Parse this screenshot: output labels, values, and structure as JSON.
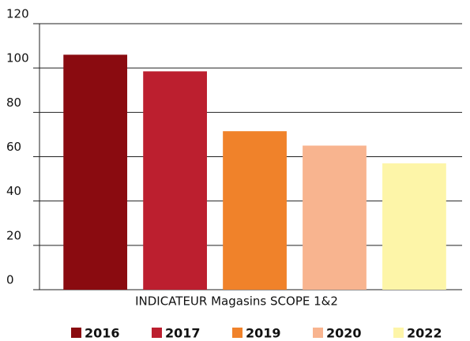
{
  "chart_data": {
    "type": "bar",
    "categories": [
      "INDICATEUR Magasins SCOPE 1&2"
    ],
    "series": [
      {
        "name": "2016",
        "color": "#8a0b10",
        "values": [
          106
        ]
      },
      {
        "name": "2017",
        "color": "#bc1f2f",
        "values": [
          98.5
        ]
      },
      {
        "name": "2019",
        "color": "#f0822a",
        "values": [
          71.5
        ]
      },
      {
        "name": "2020",
        "color": "#f8b48f",
        "values": [
          65
        ]
      },
      {
        "name": "2022",
        "color": "#fdf5a8",
        "values": [
          57
        ]
      }
    ],
    "ylim": [
      0,
      120
    ],
    "yticks": [
      0,
      20,
      40,
      60,
      80,
      100,
      120
    ],
    "grid": true,
    "legend": "bottom"
  }
}
